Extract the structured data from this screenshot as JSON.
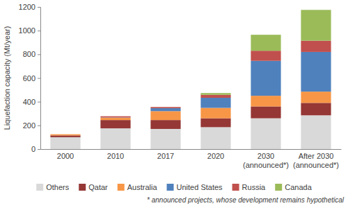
{
  "chart_data": {
    "type": "bar",
    "stacked": true,
    "y_label": "Liquefaction capacity (Mt/year)",
    "categories": [
      "2000",
      "2010",
      "2017",
      "2020",
      "2030\n(announced*)",
      "After 2030\n(announced*)"
    ],
    "series": [
      {
        "name": "Others",
        "color": "#d9d9d9",
        "values": [
          100,
          175,
          170,
          185,
          260,
          285
        ]
      },
      {
        "name": "Qatar",
        "color": "#953735",
        "values": [
          15,
          70,
          75,
          75,
          100,
          105
        ]
      },
      {
        "name": "Australia",
        "color": "#f79646",
        "values": [
          10,
          20,
          75,
          88,
          90,
          95
        ]
      },
      {
        "name": "United States",
        "color": "#4f81bd",
        "values": [
          0,
          2,
          25,
          85,
          295,
          335
        ]
      },
      {
        "name": "Russia",
        "color": "#c0504d",
        "values": [
          0,
          10,
          10,
          25,
          85,
          95
        ]
      },
      {
        "name": "Canada",
        "color": "#9bbb59",
        "values": [
          0,
          0,
          0,
          15,
          135,
          260
        ]
      }
    ],
    "ylim": [
      0,
      1200
    ],
    "yticks": [
      0,
      200,
      400,
      600,
      800,
      1000,
      1200
    ],
    "grid": false,
    "legend": "bottom",
    "annotations": [
      "* announced projects, whose development remains hypothetical"
    ]
  }
}
